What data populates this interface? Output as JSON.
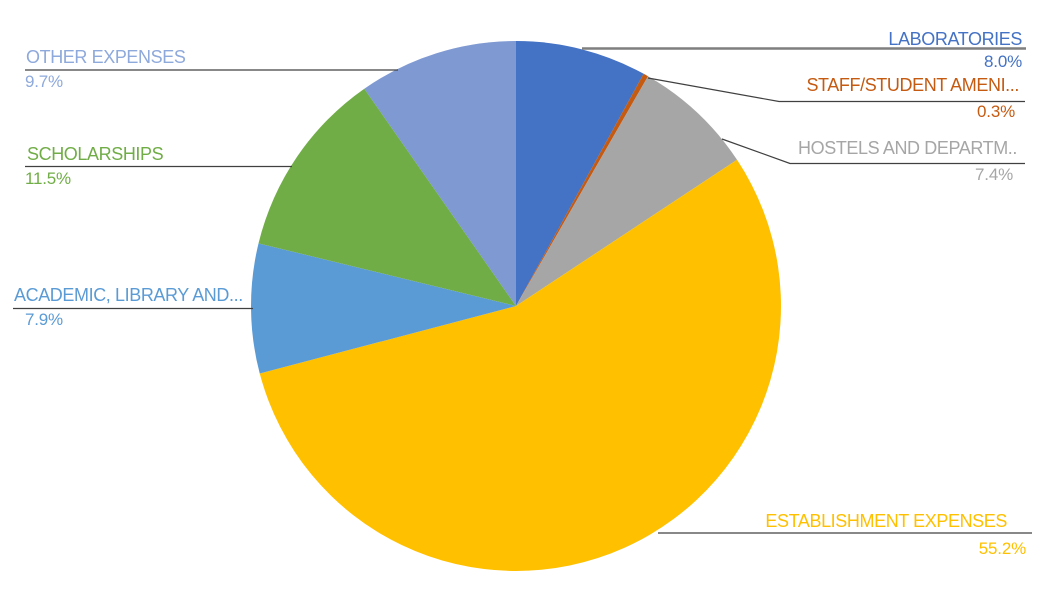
{
  "canvas": {
    "background": "#FFFFFF"
  },
  "chart_data": {
    "type": "pie",
    "title": "",
    "unit": "%",
    "start_angle_deg": 0,
    "direction": "clockwise",
    "legend": "none (callout labels with leader lines)",
    "slices": [
      {
        "id": "laboratories",
        "label": "LABORATORIES",
        "value": 8.0,
        "display": "8.0%",
        "color": "#4472C4",
        "label_color": "#4472C4"
      },
      {
        "id": "staff-student-amenities",
        "label": "STAFF/STUDENT AMENI...",
        "value": 0.3,
        "display": "0.3%",
        "color": "#C55A11",
        "label_color": "#C55A11"
      },
      {
        "id": "hostels-and-departments",
        "label": "HOSTELS AND DEPARTM..",
        "value": 7.4,
        "display": "7.4%",
        "color": "#A6A6A6",
        "label_color": "#A6A6A6"
      },
      {
        "id": "establishment-expenses",
        "label": "ESTABLISHMENT EXPENSES",
        "value": 55.2,
        "display": "55.2%",
        "color": "#FFC000",
        "label_color": "#FFC000"
      },
      {
        "id": "academic-library",
        "label": "ACADEMIC, LIBRARY AND...",
        "value": 7.9,
        "display": "7.9%",
        "color": "#5B9BD5",
        "label_color": "#5B9BD5"
      },
      {
        "id": "scholarships",
        "label": "SCHOLARSHIPS",
        "value": 11.5,
        "display": "11.5%",
        "color": "#70AD47",
        "label_color": "#70AD47"
      },
      {
        "id": "other-expenses",
        "label": "OTHER EXPENSES",
        "value": 9.7,
        "display": "9.7%",
        "color": "#7F9AD3",
        "label_color": "#8EA9DB"
      }
    ],
    "leader_line_colors": {
      "default": "#404040",
      "laboratories": "#7F7F7F"
    }
  }
}
